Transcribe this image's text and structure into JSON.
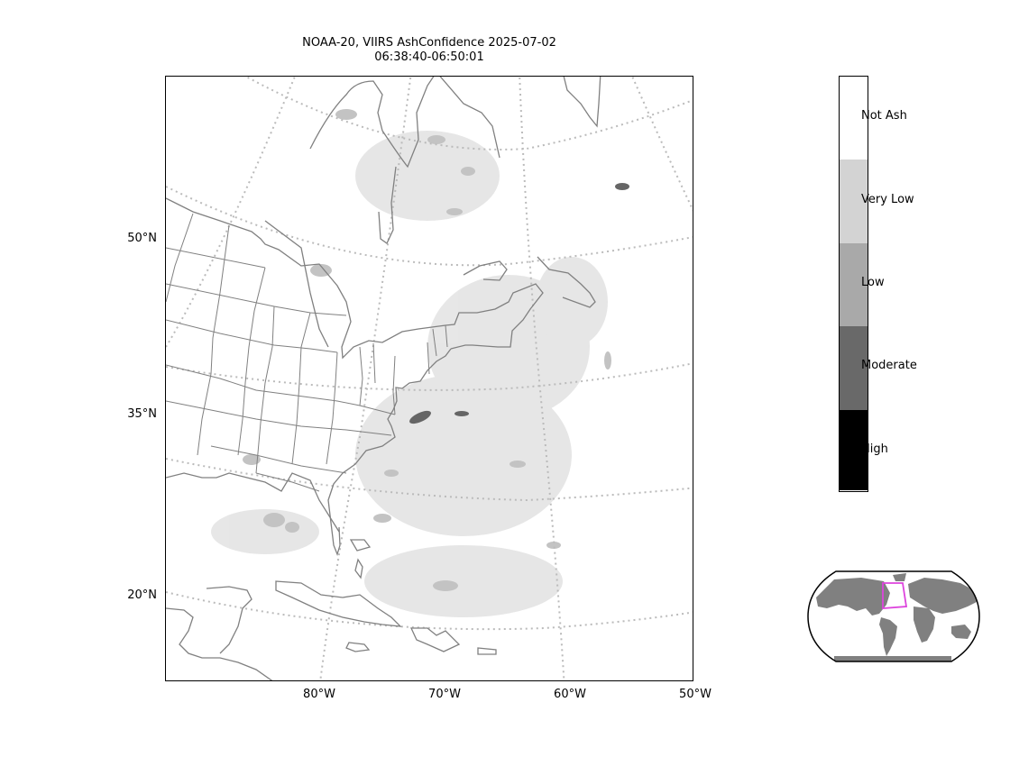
{
  "title": {
    "line1": "NOAA-20, VIIRS AshConfidence 2025-07-02",
    "line2": "06:38:40-06:50:01"
  },
  "lat_labels": [
    "50°N",
    "35°N",
    "20°N"
  ],
  "lon_labels": [
    "80°W",
    "70°W",
    "60°W",
    "50°W"
  ],
  "colorbar": {
    "classes": [
      {
        "label": "Not Ash",
        "color": "#ffffff"
      },
      {
        "label": "Very Low",
        "color": "#d3d3d3"
      },
      {
        "label": "Low",
        "color": "#a9a9a9"
      },
      {
        "label": "Moderate",
        "color": "#696969"
      },
      {
        "label": "High",
        "color": "#000000"
      }
    ]
  },
  "colors": {
    "coastline": "#808080",
    "graticule": "#bbbbbb",
    "inset_land": "#808080",
    "inset_box": "#dd44dd"
  }
}
